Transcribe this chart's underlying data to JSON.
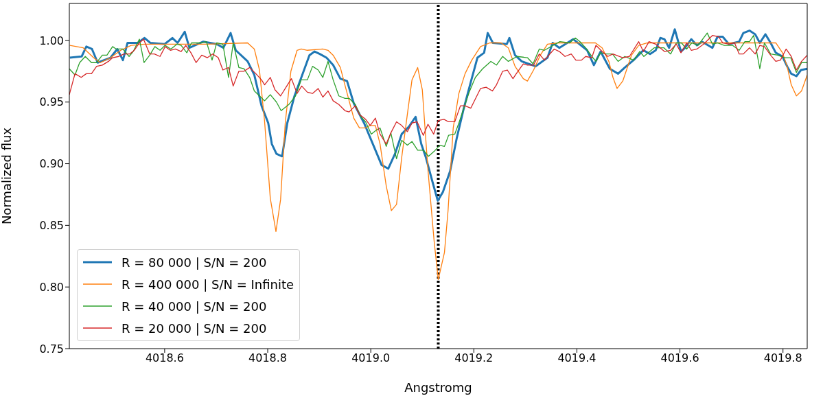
{
  "chart_data": {
    "type": "line",
    "xlabel": "Angstromg",
    "ylabel": "Normalized flux",
    "xlim": [
      4018.415,
      4019.847
    ],
    "ylim": [
      0.75,
      1.03
    ],
    "xticks": [
      {
        "value": 4018.6,
        "label": "4018.6"
      },
      {
        "value": 4018.8,
        "label": "4018.8"
      },
      {
        "value": 4019.0,
        "label": "4019.0"
      },
      {
        "value": 4019.2,
        "label": "4019.2"
      },
      {
        "value": 4019.4,
        "label": "4019.4"
      },
      {
        "value": 4019.6,
        "label": "4019.6"
      },
      {
        "value": 4019.8,
        "label": "4019.8"
      }
    ],
    "yticks": [
      {
        "value": 0.75,
        "label": "0.75"
      },
      {
        "value": 0.8,
        "label": "0.80"
      },
      {
        "value": 0.85,
        "label": "0.85"
      },
      {
        "value": 0.9,
        "label": "0.90"
      },
      {
        "value": 0.95,
        "label": "0.95"
      },
      {
        "value": 1.0,
        "label": "1.00"
      }
    ],
    "grid": false,
    "legend": "bottom left",
    "marker": "none",
    "line_style": "solid",
    "ref_lines": [
      {
        "axis": "x",
        "value": 4019.131,
        "color": "#000000",
        "line_style": "dotted"
      }
    ],
    "series": [
      {
        "name": "R = 80 000 | S/N = 200",
        "color": "#1f77b4",
        "x": [
          4018.416,
          4018.439,
          4018.448,
          4018.459,
          4018.47,
          4018.495,
          4018.508,
          4018.519,
          4018.528,
          4018.548,
          4018.561,
          4018.572,
          4018.6,
          4018.615,
          4018.625,
          4018.639,
          4018.648,
          4018.675,
          4018.701,
          4018.714,
          4018.728,
          4018.738,
          4018.761,
          4018.774,
          4018.788,
          4018.801,
          4018.808,
          4018.817,
          4018.828,
          4018.838,
          4018.852,
          4018.867,
          4018.881,
          4018.891,
          4018.901,
          4018.914,
          4018.927,
          4018.941,
          4018.954,
          4018.967,
          4018.987,
          4019.007,
          4019.021,
          4019.034,
          4019.047,
          4019.06,
          4019.074,
          4019.087,
          4019.098,
          4019.107,
          4019.12,
          4019.13,
          4019.14,
          4019.154,
          4019.167,
          4019.18,
          4019.194,
          4019.207,
          4019.22,
          4019.227,
          4019.237,
          4019.264,
          4019.269,
          4019.28,
          4019.293,
          4019.32,
          4019.343,
          4019.353,
          4019.366,
          4019.393,
          4019.42,
          4019.433,
          4019.446,
          4019.464,
          4019.48,
          4019.493,
          4019.51,
          4019.529,
          4019.542,
          4019.553,
          4019.562,
          4019.57,
          4019.579,
          4019.59,
          4019.602,
          4019.61,
          4019.622,
          4019.633,
          4019.643,
          4019.663,
          4019.673,
          4019.683,
          4019.695,
          4019.715,
          4019.723,
          4019.735,
          4019.746,
          4019.755,
          4019.766,
          4019.776,
          4019.786,
          4019.799,
          4019.808,
          4019.816,
          4019.826,
          4019.835,
          4019.847
        ],
        "values": [
          0.986,
          0.987,
          0.995,
          0.993,
          0.982,
          0.986,
          0.993,
          0.984,
          0.998,
          0.998,
          1.002,
          0.998,
          0.997,
          1.002,
          0.998,
          1.007,
          0.994,
          0.999,
          0.997,
          0.994,
          1.006,
          0.992,
          0.983,
          0.972,
          0.947,
          0.933,
          0.916,
          0.908,
          0.906,
          0.933,
          0.955,
          0.972,
          0.988,
          0.991,
          0.989,
          0.986,
          0.98,
          0.969,
          0.967,
          0.949,
          0.933,
          0.913,
          0.899,
          0.896,
          0.908,
          0.924,
          0.93,
          0.938,
          0.916,
          0.905,
          0.885,
          0.87,
          0.877,
          0.894,
          0.921,
          0.944,
          0.966,
          0.986,
          0.99,
          1.006,
          0.998,
          0.997,
          1.002,
          0.988,
          0.983,
          0.979,
          0.986,
          0.998,
          0.994,
          1.001,
          0.992,
          0.98,
          0.991,
          0.977,
          0.973,
          0.978,
          0.984,
          0.992,
          0.989,
          0.992,
          1.002,
          1.001,
          0.994,
          1.009,
          0.991,
          0.994,
          1.001,
          0.996,
          0.999,
          0.994,
          1.003,
          1.003,
          0.997,
          0.999,
          1.006,
          1.008,
          1.005,
          0.998,
          1.005,
          0.998,
          0.99,
          0.987,
          0.979,
          0.973,
          0.971,
          0.976,
          0.977
        ]
      },
      {
        "name": "R = 400 000 | S/N = Infinite",
        "color": "#ff7f0e",
        "x": [
          4018.416,
          4018.442,
          4018.462,
          4018.475,
          4018.495,
          4018.515,
          4018.535,
          4018.561,
          4018.681,
          4018.761,
          4018.774,
          4018.784,
          4018.794,
          4018.805,
          4018.816,
          4018.825,
          4018.834,
          4018.845,
          4018.857,
          4018.865,
          4018.877,
          4018.907,
          4018.917,
          4018.927,
          4018.941,
          4018.951,
          4018.967,
          4018.978,
          4018.99,
          4018.998,
          4019.009,
          4019.018,
          4019.03,
          4019.04,
          4019.05,
          4019.06,
          4019.071,
          4019.08,
          4019.091,
          4019.1,
          4019.111,
          4019.123,
          4019.131,
          4019.143,
          4019.15,
          4019.16,
          4019.171,
          4019.183,
          4019.196,
          4019.213,
          4019.231,
          4019.253,
          4019.267,
          4019.28,
          4019.296,
          4019.304,
          4019.316,
          4019.329,
          4019.343,
          4019.364,
          4019.436,
          4019.449,
          4019.462,
          4019.47,
          4019.478,
          4019.489,
          4019.506,
          4019.52,
          4019.537,
          4019.776,
          4019.786,
          4019.799,
          4019.808,
          4019.816,
          4019.826,
          4019.836,
          4019.847
        ],
        "values": [
          0.996,
          0.994,
          0.986,
          0.982,
          0.986,
          0.992,
          0.996,
          0.997,
          0.997,
          0.998,
          0.993,
          0.976,
          0.934,
          0.872,
          0.845,
          0.871,
          0.933,
          0.975,
          0.992,
          0.993,
          0.992,
          0.993,
          0.992,
          0.988,
          0.978,
          0.962,
          0.937,
          0.929,
          0.929,
          0.931,
          0.931,
          0.916,
          0.882,
          0.862,
          0.867,
          0.905,
          0.94,
          0.968,
          0.978,
          0.96,
          0.895,
          0.837,
          0.806,
          0.828,
          0.862,
          0.929,
          0.957,
          0.973,
          0.984,
          0.995,
          0.998,
          0.998,
          0.994,
          0.979,
          0.969,
          0.967,
          0.976,
          0.988,
          0.997,
          0.998,
          0.998,
          0.994,
          0.983,
          0.97,
          0.961,
          0.967,
          0.988,
          0.996,
          0.998,
          0.998,
          0.998,
          0.99,
          0.979,
          0.964,
          0.955,
          0.959,
          0.972
        ]
      },
      {
        "name": "R = 40 000 | S/N = 200",
        "color": "#2ca02c",
        "x": [
          4018.415,
          4018.426,
          4018.435,
          4018.446,
          4018.458,
          4018.468,
          4018.479,
          4018.488,
          4018.499,
          4018.506,
          4018.519,
          4018.531,
          4018.539,
          4018.551,
          4018.56,
          4018.571,
          4018.581,
          4018.591,
          4018.601,
          4018.612,
          4018.624,
          4018.632,
          4018.643,
          4018.652,
          4018.671,
          4018.681,
          4018.692,
          4018.701,
          4018.713,
          4018.724,
          4018.733,
          4018.744,
          4018.754,
          4018.765,
          4018.774,
          4018.794,
          4018.805,
          4018.817,
          4018.826,
          4018.841,
          4018.854,
          4018.865,
          4018.877,
          4018.887,
          4018.898,
          4018.907,
          4018.917,
          4018.927,
          4018.938,
          4018.95,
          4018.958,
          4018.97,
          4018.981,
          4018.99,
          4019.001,
          4019.01,
          4019.018,
          4019.03,
          4019.039,
          4019.05,
          4019.06,
          4019.071,
          4019.08,
          4019.091,
          4019.102,
          4019.112,
          4019.123,
          4019.134,
          4019.143,
          4019.151,
          4019.163,
          4019.171,
          4019.183,
          4019.191,
          4019.203,
          4019.217,
          4019.233,
          4019.244,
          4019.256,
          4019.267,
          4019.284,
          4019.304,
          4019.315,
          4019.327,
          4019.337,
          4019.367,
          4019.386,
          4019.397,
          4019.406,
          4019.417,
          4019.429,
          4019.437,
          4019.446,
          4019.457,
          4019.469,
          4019.48,
          4019.493,
          4019.51,
          4019.522,
          4019.53,
          4019.55,
          4019.569,
          4019.582,
          4019.593,
          4019.603,
          4019.613,
          4019.623,
          4019.635,
          4019.653,
          4019.663,
          4019.673,
          4019.686,
          4019.702,
          4019.715,
          4019.726,
          4019.735,
          4019.743,
          4019.755,
          4019.764,
          4019.776,
          4019.79,
          4019.803,
          4019.815,
          4019.826,
          4019.836,
          4019.847
        ],
        "values": [
          0.977,
          0.972,
          0.982,
          0.987,
          0.982,
          0.982,
          0.988,
          0.988,
          0.995,
          0.993,
          0.993,
          0.987,
          0.991,
          1.001,
          0.982,
          0.988,
          0.995,
          0.992,
          0.996,
          0.993,
          0.997,
          0.996,
          0.99,
          0.998,
          0.998,
          0.999,
          0.984,
          0.998,
          0.997,
          0.97,
          0.998,
          0.978,
          0.977,
          0.97,
          0.959,
          0.951,
          0.956,
          0.95,
          0.943,
          0.948,
          0.955,
          0.968,
          0.968,
          0.979,
          0.976,
          0.97,
          0.983,
          0.968,
          0.955,
          0.953,
          0.953,
          0.948,
          0.938,
          0.934,
          0.924,
          0.927,
          0.929,
          0.914,
          0.925,
          0.904,
          0.919,
          0.915,
          0.918,
          0.911,
          0.911,
          0.906,
          0.91,
          0.915,
          0.914,
          0.923,
          0.924,
          0.933,
          0.948,
          0.958,
          0.97,
          0.977,
          0.983,
          0.98,
          0.987,
          0.983,
          0.987,
          0.986,
          0.981,
          0.993,
          0.992,
          0.999,
          0.998,
          1.002,
          0.999,
          0.994,
          0.987,
          0.983,
          0.99,
          0.989,
          0.989,
          0.983,
          0.987,
          0.984,
          0.991,
          0.987,
          0.994,
          0.994,
          0.989,
          0.998,
          0.998,
          0.993,
          0.998,
          0.996,
          1.006,
          0.997,
          0.998,
          0.996,
          0.996,
          0.992,
          0.999,
          0.999,
          1.004,
          0.977,
          0.998,
          0.989,
          0.988,
          0.986,
          0.986,
          0.974,
          0.982,
          0.982
        ]
      },
      {
        "name": "R = 20 000 | S/N = 200",
        "color": "#d62728",
        "x": [
          4018.415,
          4018.426,
          4018.438,
          4018.448,
          4018.458,
          4018.468,
          4018.479,
          4018.491,
          4018.499,
          4018.511,
          4018.521,
          4018.532,
          4018.541,
          4018.551,
          4018.559,
          4018.571,
          4018.58,
          4018.591,
          4018.601,
          4018.611,
          4018.621,
          4018.632,
          4018.641,
          4018.651,
          4018.661,
          4018.672,
          4018.683,
          4018.693,
          4018.704,
          4018.713,
          4018.724,
          4018.733,
          4018.744,
          4018.754,
          4018.765,
          4018.777,
          4018.788,
          4018.794,
          4018.805,
          4018.814,
          4018.825,
          4018.837,
          4018.846,
          4018.857,
          4018.866,
          4018.877,
          4018.887,
          4018.898,
          4018.907,
          4018.917,
          4018.927,
          4018.938,
          4018.95,
          4018.958,
          4018.97,
          4018.978,
          4018.99,
          4018.999,
          4019.009,
          4019.018,
          4019.03,
          4019.039,
          4019.05,
          4019.06,
          4019.071,
          4019.08,
          4019.09,
          4019.102,
          4019.111,
          4019.122,
          4019.131,
          4019.142,
          4019.151,
          4019.163,
          4019.174,
          4019.183,
          4019.194,
          4019.213,
          4019.224,
          4019.236,
          4019.244,
          4019.256,
          4019.265,
          4019.276,
          4019.284,
          4019.296,
          4019.304,
          4019.316,
          4019.327,
          4019.337,
          4019.356,
          4019.366,
          4019.377,
          4019.389,
          4019.398,
          4019.409,
          4019.417,
          4019.429,
          4019.437,
          4019.449,
          4019.46,
          4019.47,
          4019.489,
          4019.502,
          4019.52,
          4019.529,
          4019.54,
          4019.553,
          4019.57,
          4019.582,
          4019.593,
          4019.602,
          4019.613,
          4019.622,
          4019.633,
          4019.646,
          4019.663,
          4019.675,
          4019.683,
          4019.695,
          4019.706,
          4019.715,
          4019.723,
          4019.735,
          4019.746,
          4019.755,
          4019.764,
          4019.776,
          4019.786,
          4019.795,
          4019.806,
          4019.816,
          4019.826,
          4019.836,
          4019.847
        ],
        "values": [
          0.956,
          0.973,
          0.97,
          0.973,
          0.973,
          0.979,
          0.98,
          0.983,
          0.986,
          0.987,
          0.989,
          0.989,
          0.992,
          0.998,
          1.001,
          0.989,
          0.989,
          0.987,
          0.995,
          0.992,
          0.993,
          0.991,
          0.996,
          0.99,
          0.982,
          0.988,
          0.986,
          0.989,
          0.986,
          0.976,
          0.978,
          0.963,
          0.975,
          0.975,
          0.978,
          0.973,
          0.968,
          0.964,
          0.97,
          0.96,
          0.955,
          0.963,
          0.969,
          0.957,
          0.963,
          0.958,
          0.957,
          0.961,
          0.954,
          0.959,
          0.951,
          0.948,
          0.943,
          0.942,
          0.947,
          0.94,
          0.936,
          0.931,
          0.937,
          0.924,
          0.916,
          0.925,
          0.934,
          0.931,
          0.926,
          0.933,
          0.934,
          0.923,
          0.932,
          0.924,
          0.935,
          0.936,
          0.934,
          0.934,
          0.947,
          0.947,
          0.945,
          0.961,
          0.962,
          0.959,
          0.964,
          0.975,
          0.976,
          0.969,
          0.974,
          0.981,
          0.98,
          0.98,
          0.989,
          0.984,
          0.993,
          0.991,
          0.987,
          0.989,
          0.984,
          0.984,
          0.987,
          0.986,
          0.996,
          0.991,
          0.987,
          0.989,
          0.986,
          0.987,
          0.999,
          0.991,
          0.999,
          0.997,
          0.991,
          0.992,
          0.997,
          0.99,
          0.998,
          0.992,
          0.993,
          0.997,
          1.004,
          1.003,
          0.998,
          0.997,
          0.998,
          0.989,
          0.989,
          0.994,
          0.989,
          0.996,
          0.995,
          0.988,
          0.983,
          0.984,
          0.993,
          0.987,
          0.976,
          0.983,
          0.988
        ]
      }
    ]
  }
}
